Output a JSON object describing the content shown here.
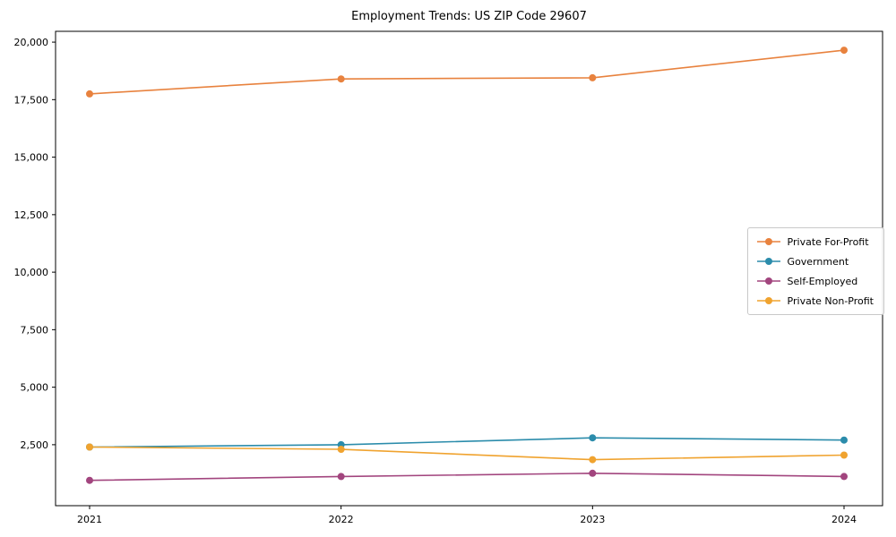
{
  "chart_data": {
    "type": "line",
    "title": "Employment Trends: US ZIP Code 29607",
    "categories": [
      "2021",
      "2022",
      "2023",
      "2024"
    ],
    "series": [
      {
        "name": "Private For-Profit",
        "color": "#e8823e",
        "values": [
          17750,
          18400,
          18450,
          19650
        ]
      },
      {
        "name": "Government",
        "color": "#2b8cab",
        "values": [
          2400,
          2500,
          2800,
          2700
        ]
      },
      {
        "name": "Self-Employed",
        "color": "#a2457e",
        "values": [
          950,
          1120,
          1260,
          1120
        ]
      },
      {
        "name": "Private Non-Profit",
        "color": "#f0a32f",
        "values": [
          2400,
          2300,
          1850,
          2050
        ]
      }
    ],
    "xlabel": "",
    "ylabel": "",
    "ylim": [
      -150,
      20470
    ],
    "yticks": [
      2500,
      5000,
      7500,
      10000,
      12500,
      15000,
      17500,
      20000
    ],
    "ytick_labels": [
      "2,500",
      "5,000",
      "7,500",
      "10,000",
      "12,500",
      "15,000",
      "17,500",
      "20,000"
    ],
    "grid": false,
    "legend_position": "center-right"
  }
}
